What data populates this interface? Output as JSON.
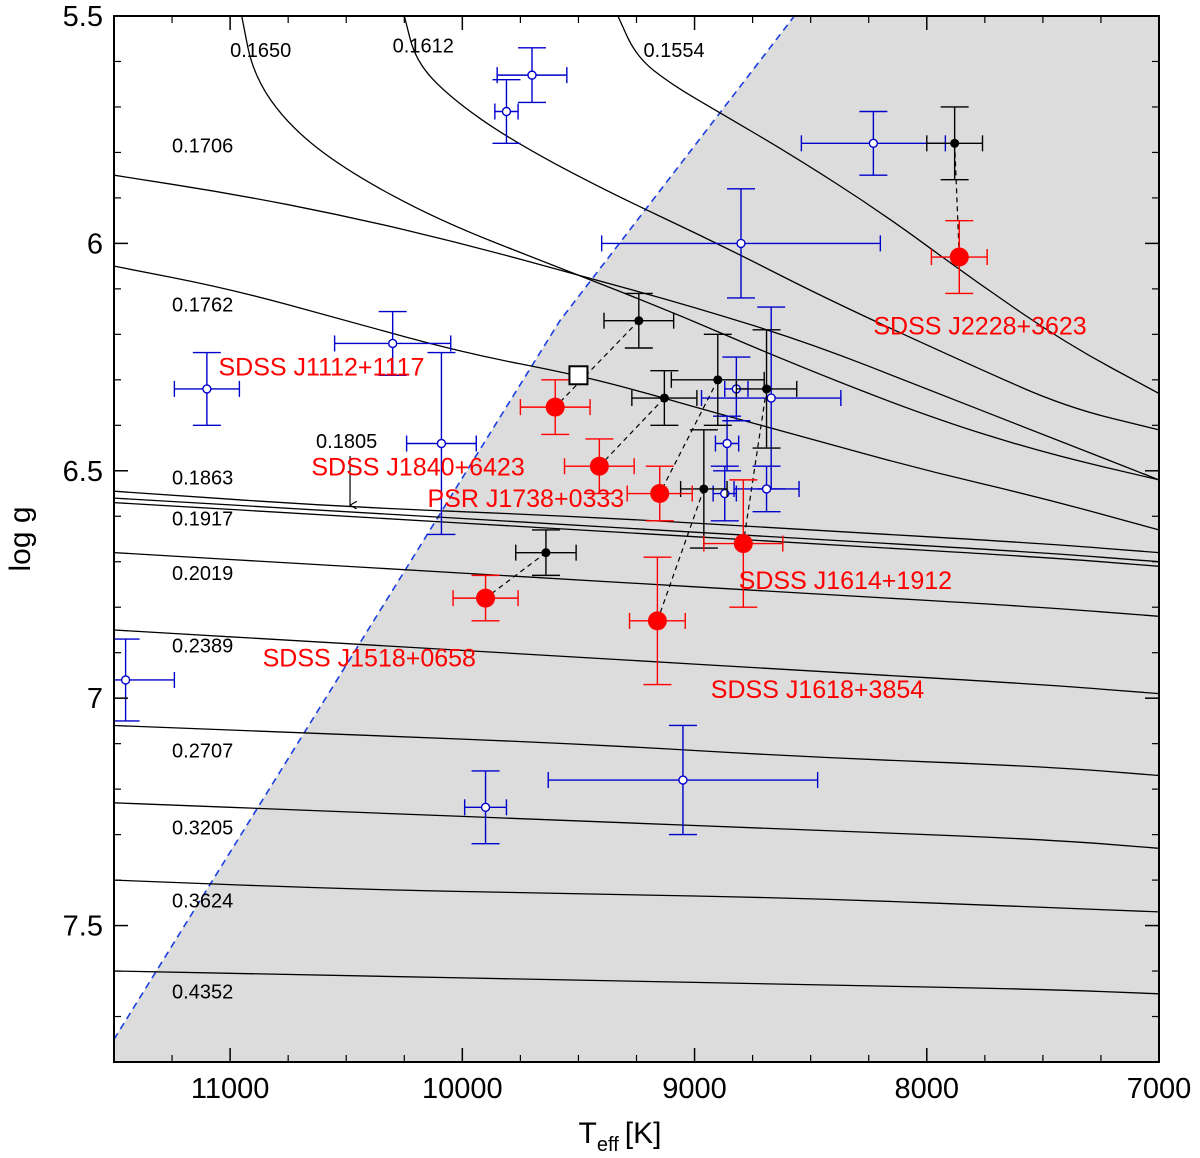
{
  "chart_data": {
    "type": "scatter",
    "xlabel": "T",
    "xlabel_sub": "eff",
    "xlabel_unit": "[K]",
    "ylabel": "log g",
    "xlim": [
      11500,
      7000
    ],
    "ylim": [
      5.5,
      7.8
    ],
    "x_ticks": [
      {
        "value": 11000,
        "label": "11000"
      },
      {
        "value": 10000,
        "label": "10000"
      },
      {
        "value": 9000,
        "label": "9000"
      },
      {
        "value": 8000,
        "label": "8000"
      },
      {
        "value": 7000,
        "label": "7000"
      }
    ],
    "y_ticks": [
      {
        "value": 5.5,
        "label": "5.5"
      },
      {
        "value": 6.0,
        "label": "6"
      },
      {
        "value": 6.5,
        "label": "6.5"
      },
      {
        "value": 7.0,
        "label": "7"
      },
      {
        "value": 7.5,
        "label": "7.5"
      }
    ],
    "colors": {
      "red": "#ff0000",
      "blue": "#0000cc",
      "black": "#000000",
      "shade": "#dcdcdc",
      "boundary": "#1a3fe0"
    },
    "instability_boundary": [
      [
        11500,
        7.75
      ],
      [
        9580,
        6.17
      ],
      [
        8570,
        5.5
      ]
    ],
    "tracks": [
      {
        "label": "0.1650",
        "label_at": [
          11000,
          5.59
        ],
        "points": [
          [
            10950,
            5.5
          ],
          [
            10900,
            5.63
          ],
          [
            10750,
            5.74
          ],
          [
            10500,
            5.84
          ],
          [
            10100,
            5.95
          ],
          [
            9600,
            6.05
          ],
          [
            9100,
            6.15
          ],
          [
            8600,
            6.26
          ],
          [
            8000,
            6.38
          ],
          [
            7500,
            6.46
          ],
          [
            7000,
            6.52
          ]
        ]
      },
      {
        "label": "0.1612",
        "label_at": [
          10300,
          5.58
        ],
        "points": [
          [
            10250,
            5.5
          ],
          [
            10200,
            5.6
          ],
          [
            10050,
            5.68
          ],
          [
            9800,
            5.77
          ],
          [
            9400,
            5.88
          ],
          [
            8900,
            6.0
          ],
          [
            8400,
            6.13
          ],
          [
            7800,
            6.27
          ],
          [
            7400,
            6.36
          ],
          [
            7000,
            6.41
          ]
        ]
      },
      {
        "label": "0.1554",
        "label_at": [
          9220,
          5.59
        ],
        "points": [
          [
            9330,
            5.5
          ],
          [
            9250,
            5.59
          ],
          [
            9100,
            5.65
          ],
          [
            8900,
            5.71
          ],
          [
            8600,
            5.8
          ],
          [
            8200,
            5.93
          ],
          [
            7800,
            6.08
          ],
          [
            7400,
            6.22
          ],
          [
            7000,
            6.33
          ]
        ]
      },
      {
        "label": "0.1706",
        "label_at": [
          11250,
          5.8
        ],
        "points": [
          [
            11500,
            5.85
          ],
          [
            11000,
            5.89
          ],
          [
            10500,
            5.94
          ],
          [
            10000,
            6.0
          ],
          [
            9500,
            6.07
          ],
          [
            9000,
            6.14
          ],
          [
            8500,
            6.22
          ],
          [
            8000,
            6.32
          ],
          [
            7500,
            6.42
          ],
          [
            7000,
            6.52
          ]
        ]
      },
      {
        "label": "0.1762",
        "label_at": [
          11250,
          6.15
        ],
        "points": [
          [
            11500,
            6.05
          ],
          [
            11000,
            6.1
          ],
          [
            10500,
            6.17
          ],
          [
            10000,
            6.24
          ],
          [
            9500,
            6.29
          ],
          [
            9200,
            6.33
          ],
          [
            9000,
            6.36
          ],
          [
            8500,
            6.43
          ],
          [
            8000,
            6.5
          ],
          [
            7500,
            6.56
          ],
          [
            7000,
            6.63
          ]
        ]
      },
      {
        "label": "0.1805",
        "label_at": [
          10630,
          6.45
        ],
        "arrow": true,
        "points": [
          [
            11500,
            6.545
          ],
          [
            10500,
            6.58
          ],
          [
            9500,
            6.6
          ],
          [
            8500,
            6.63
          ],
          [
            7500,
            6.66
          ],
          [
            7000,
            6.68
          ]
        ]
      },
      {
        "label": "0.1863",
        "label_at": [
          11250,
          6.53
        ],
        "points": [
          [
            11500,
            6.56
          ],
          [
            10500,
            6.59
          ],
          [
            9500,
            6.62
          ],
          [
            8500,
            6.65
          ],
          [
            7500,
            6.68
          ],
          [
            7000,
            6.7
          ]
        ]
      },
      {
        "label": "0.1917",
        "label_at": [
          11250,
          6.62
        ],
        "points": [
          [
            11500,
            6.57
          ],
          [
            10500,
            6.6
          ],
          [
            9500,
            6.63
          ],
          [
            8500,
            6.66
          ],
          [
            7500,
            6.69
          ],
          [
            7000,
            6.71
          ]
        ]
      },
      {
        "label": "0.2019",
        "label_at": [
          11250,
          6.74
        ],
        "points": [
          [
            11500,
            6.68
          ],
          [
            10500,
            6.71
          ],
          [
            9500,
            6.74
          ],
          [
            8500,
            6.77
          ],
          [
            7500,
            6.8
          ],
          [
            7000,
            6.82
          ]
        ]
      },
      {
        "label": "0.2389",
        "label_at": [
          11250,
          6.9
        ],
        "points": [
          [
            11500,
            6.85
          ],
          [
            10500,
            6.88
          ],
          [
            9500,
            6.91
          ],
          [
            8500,
            6.94
          ],
          [
            7500,
            6.97
          ],
          [
            7000,
            6.99
          ]
        ]
      },
      {
        "label": "0.2707",
        "label_at": [
          11250,
          7.13
        ],
        "points": [
          [
            11500,
            7.06
          ],
          [
            10500,
            7.08
          ],
          [
            9500,
            7.1
          ],
          [
            8500,
            7.13
          ],
          [
            7500,
            7.15
          ],
          [
            7000,
            7.17
          ]
        ]
      },
      {
        "label": "0.3205",
        "label_at": [
          11250,
          7.3
        ],
        "points": [
          [
            11500,
            7.23
          ],
          [
            10500,
            7.25
          ],
          [
            9500,
            7.27
          ],
          [
            8500,
            7.29
          ],
          [
            7500,
            7.31
          ],
          [
            7000,
            7.33
          ]
        ]
      },
      {
        "label": "0.3624",
        "label_at": [
          11250,
          7.46
        ],
        "points": [
          [
            11500,
            7.4
          ],
          [
            10500,
            7.42
          ],
          [
            9500,
            7.43
          ],
          [
            8500,
            7.44
          ],
          [
            7500,
            7.46
          ],
          [
            7000,
            7.47
          ]
        ]
      },
      {
        "label": "0.4352",
        "label_at": [
          11250,
          7.66
        ],
        "points": [
          [
            11500,
            7.6
          ],
          [
            10500,
            7.61
          ],
          [
            9500,
            7.62
          ],
          [
            8500,
            7.63
          ],
          [
            7500,
            7.64
          ],
          [
            7000,
            7.65
          ]
        ]
      }
    ],
    "blue_points": [
      {
        "x": 9700,
        "y": 5.63,
        "ex": 150,
        "ey": 0.06
      },
      {
        "x": 9810,
        "y": 5.71,
        "ex": 50,
        "ey": 0.07
      },
      {
        "x": 8230,
        "y": 5.78,
        "ex": 310,
        "ey": 0.07
      },
      {
        "x": 8800,
        "y": 6.0,
        "ex": 600,
        "ey": 0.12
      },
      {
        "x": 10300,
        "y": 6.22,
        "ex": 250,
        "ey": 0.07
      },
      {
        "x": 11100,
        "y": 6.32,
        "ex": 140,
        "ey": 0.08
      },
      {
        "x": 10090,
        "y": 6.44,
        "ex": 150,
        "ey": 0.2
      },
      {
        "x": 8820,
        "y": 6.32,
        "ex": 50,
        "ey": 0.07
      },
      {
        "x": 8670,
        "y": 6.34,
        "ex": 300,
        "ey": 0.2
      },
      {
        "x": 8860,
        "y": 6.44,
        "ex": 50,
        "ey": 0.06
      },
      {
        "x": 8870,
        "y": 6.55,
        "ex": 50,
        "ey": 0.06
      },
      {
        "x": 8690,
        "y": 6.54,
        "ex": 140,
        "ey": 0.05
      },
      {
        "x": 11450,
        "y": 6.96,
        "ex": 210,
        "ey": 0.09
      },
      {
        "x": 9050,
        "y": 7.18,
        "ex": 580,
        "ey": 0.12
      },
      {
        "x": 9900,
        "y": 7.24,
        "ex": 90,
        "ey": 0.08
      }
    ],
    "black_points": [
      {
        "x": 9240,
        "y": 6.17,
        "ex": 150,
        "ey": 0.06
      },
      {
        "x": 8900,
        "y": 6.3,
        "ex": 200,
        "ey": 0.1
      },
      {
        "x": 8690,
        "y": 6.32,
        "ex": 130,
        "ey": 0.13
      },
      {
        "x": 9130,
        "y": 6.34,
        "ex": 140,
        "ey": 0.06
      },
      {
        "x": 8960,
        "y": 6.54,
        "ex": 100,
        "ey": 0.13
      },
      {
        "x": 9640,
        "y": 6.68,
        "ex": 130,
        "ey": 0.05
      },
      {
        "x": 7880,
        "y": 5.78,
        "ex": 120,
        "ey": 0.08
      }
    ],
    "red_points": [
      {
        "x": 9600,
        "y": 6.36,
        "ex": 150,
        "ey": 0.06,
        "label": "SDSS J1112+1117",
        "label_at": [
          11050,
          6.29
        ]
      },
      {
        "x": 9410,
        "y": 6.49,
        "ex": 150,
        "ey": 0.06,
        "label": "SDSS J1840+6423",
        "label_at": [
          10650,
          6.51
        ]
      },
      {
        "x": 9150,
        "y": 6.55,
        "ex": 140,
        "ey": 0.06,
        "label": "PSR J1738+0333",
        "label_at": [
          10150,
          6.58
        ]
      },
      {
        "x": 8790,
        "y": 6.66,
        "ex": 170,
        "ey": 0.14,
        "label": "SDSS J1614+1912",
        "label_at": [
          8810,
          6.76
        ]
      },
      {
        "x": 9900,
        "y": 6.78,
        "ex": 140,
        "ey": 0.05,
        "label": "SDSS J1518+0658",
        "label_at": [
          10860,
          6.93
        ]
      },
      {
        "x": 9160,
        "y": 6.83,
        "ex": 120,
        "ey": 0.14,
        "label": "SDSS J1618+3854",
        "label_at": [
          8930,
          7.0
        ]
      },
      {
        "x": 7860,
        "y": 6.03,
        "ex": 120,
        "ey": 0.08,
        "label": "SDSS J2228+3623",
        "label_at": [
          8230,
          6.2
        ]
      }
    ],
    "square_point": {
      "x": 9500,
      "y": 6.29
    },
    "dashed_links": [
      [
        [
          9240,
          6.17
        ],
        [
          9600,
          6.36
        ]
      ],
      [
        [
          9130,
          6.34
        ],
        [
          9410,
          6.49
        ]
      ],
      [
        [
          8900,
          6.3
        ],
        [
          9150,
          6.55
        ]
      ],
      [
        [
          8690,
          6.32
        ],
        [
          8790,
          6.66
        ]
      ],
      [
        [
          8960,
          6.54
        ],
        [
          9160,
          6.83
        ]
      ],
      [
        [
          9640,
          6.68
        ],
        [
          9900,
          6.78
        ]
      ],
      [
        [
          7880,
          5.78
        ],
        [
          7860,
          6.03
        ]
      ]
    ]
  }
}
